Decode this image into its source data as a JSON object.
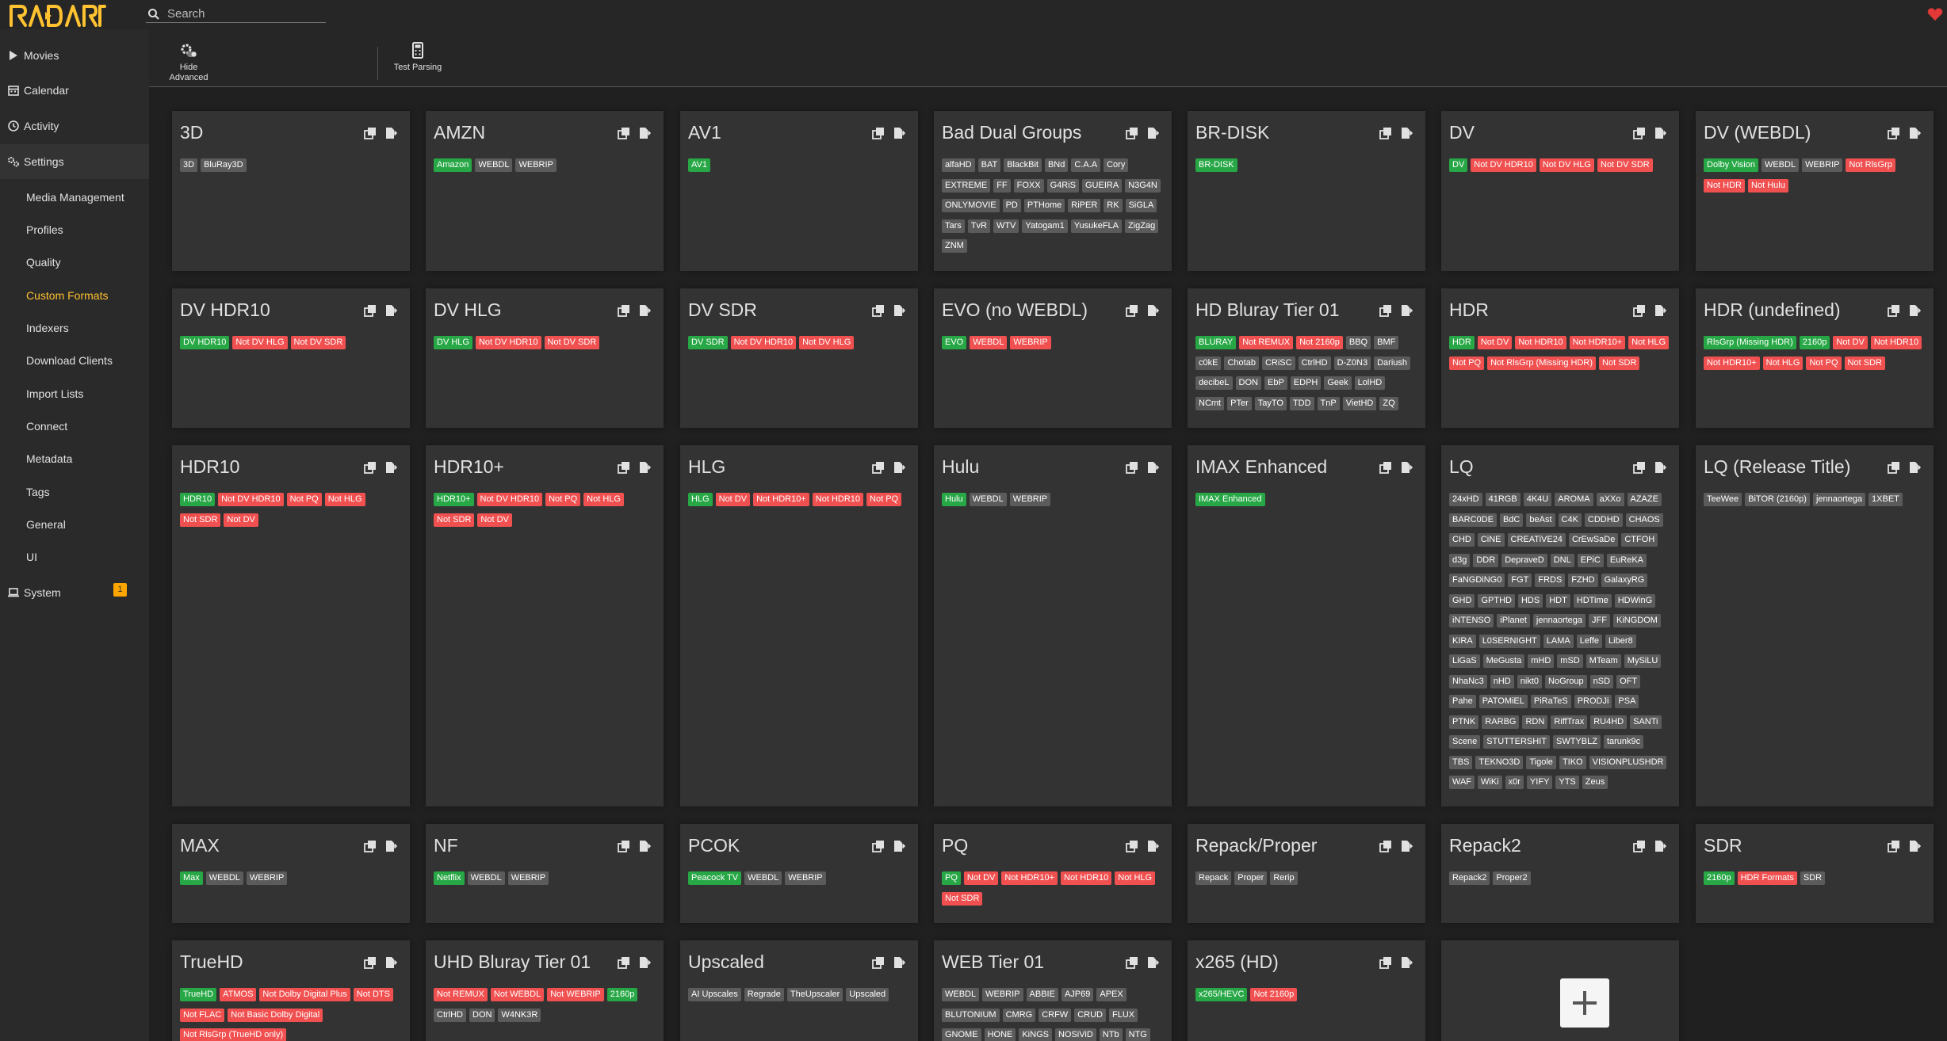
{
  "app": {
    "name": "RADARR"
  },
  "search": {
    "placeholder": "Search"
  },
  "sidebar": {
    "items": [
      {
        "id": "movies",
        "label": "Movies",
        "icon": "play-icon"
      },
      {
        "id": "calendar",
        "label": "Calendar",
        "icon": "calendar-icon"
      },
      {
        "id": "activity",
        "label": "Activity",
        "icon": "clock-icon"
      },
      {
        "id": "settings",
        "label": "Settings",
        "icon": "gears-icon"
      }
    ],
    "settings_sub": [
      "Media Management",
      "Profiles",
      "Quality",
      "Custom Formats",
      "Indexers",
      "Download Clients",
      "Import Lists",
      "Connect",
      "Metadata",
      "Tags",
      "General",
      "UI"
    ],
    "system": {
      "label": "System",
      "badge": "1"
    }
  },
  "toolbar": {
    "hide_advanced": "Hide Advanced",
    "test_parsing": "Test Parsing"
  },
  "colors": {
    "accent": "#ffc230",
    "ok": "#27a745",
    "bad": "#f05050",
    "neutral": "#5b5b5b",
    "card": "#333333"
  },
  "formats": [
    {
      "name": "3D",
      "tags": [
        [
          "3D",
          "neu"
        ],
        [
          "BluRay3D",
          "neu"
        ]
      ]
    },
    {
      "name": "AMZN",
      "tags": [
        [
          "Amazon",
          "ok"
        ],
        [
          "WEBDL",
          "neu"
        ],
        [
          "WEBRIP",
          "neu"
        ]
      ]
    },
    {
      "name": "AV1",
      "tags": [
        [
          "AV1",
          "ok"
        ]
      ]
    },
    {
      "name": "Bad Dual Groups",
      "tags": [
        [
          "alfaHD",
          "neu"
        ],
        [
          "BAT",
          "neu"
        ],
        [
          "BlackBit",
          "neu"
        ],
        [
          "BNd",
          "neu"
        ],
        [
          "C.A.A",
          "neu"
        ],
        [
          "Cory",
          "neu"
        ],
        [
          "EXTREME",
          "neu"
        ],
        [
          "FF",
          "neu"
        ],
        [
          "FOXX",
          "neu"
        ],
        [
          "G4RiS",
          "neu"
        ],
        [
          "GUEIRA",
          "neu"
        ],
        [
          "N3G4N",
          "neu"
        ],
        [
          "ONLYMOVIE",
          "neu"
        ],
        [
          "PD",
          "neu"
        ],
        [
          "PTHome",
          "neu"
        ],
        [
          "RiPER",
          "neu"
        ],
        [
          "RK",
          "neu"
        ],
        [
          "SiGLA",
          "neu"
        ],
        [
          "Tars",
          "neu"
        ],
        [
          "TvR",
          "neu"
        ],
        [
          "WTV",
          "neu"
        ],
        [
          "Yatogam1",
          "neu"
        ],
        [
          "YusukeFLA",
          "neu"
        ],
        [
          "ZigZag",
          "neu"
        ],
        [
          "ZNM",
          "neu"
        ]
      ]
    },
    {
      "name": "BR-DISK",
      "tags": [
        [
          "BR-DISK",
          "ok"
        ]
      ]
    },
    {
      "name": "DV",
      "tags": [
        [
          "DV",
          "ok"
        ],
        [
          "Not DV HDR10",
          "bad"
        ],
        [
          "Not DV HLG",
          "bad"
        ],
        [
          "Not DV SDR",
          "bad"
        ]
      ]
    },
    {
      "name": "DV (WEBDL)",
      "tags": [
        [
          "Dolby Vision",
          "ok"
        ],
        [
          "WEBDL",
          "neu"
        ],
        [
          "WEBRIP",
          "neu"
        ],
        [
          "Not RlsGrp",
          "bad"
        ],
        [
          "Not HDR",
          "bad"
        ],
        [
          "Not Hulu",
          "bad"
        ]
      ]
    },
    {
      "name": "DV HDR10",
      "tags": [
        [
          "DV HDR10",
          "ok"
        ],
        [
          "Not DV HLG",
          "bad"
        ],
        [
          "Not DV SDR",
          "bad"
        ]
      ]
    },
    {
      "name": "DV HLG",
      "tags": [
        [
          "DV HLG",
          "ok"
        ],
        [
          "Not DV HDR10",
          "bad"
        ],
        [
          "Not DV SDR",
          "bad"
        ]
      ]
    },
    {
      "name": "DV SDR",
      "tags": [
        [
          "DV SDR",
          "ok"
        ],
        [
          "Not DV HDR10",
          "bad"
        ],
        [
          "Not DV HLG",
          "bad"
        ]
      ]
    },
    {
      "name": "EVO (no WEBDL)",
      "tags": [
        [
          "EVO",
          "ok"
        ],
        [
          "WEBDL",
          "bad"
        ],
        [
          "WEBRIP",
          "bad"
        ]
      ]
    },
    {
      "name": "HD Bluray Tier 01",
      "tags": [
        [
          "BLURAY",
          "ok"
        ],
        [
          "Not REMUX",
          "bad"
        ],
        [
          "Not 2160p",
          "bad"
        ],
        [
          "BBQ",
          "neu"
        ],
        [
          "BMF",
          "neu"
        ],
        [
          "c0kE",
          "neu"
        ],
        [
          "Chotab",
          "neu"
        ],
        [
          "CRiSC",
          "neu"
        ],
        [
          "CtrlHD",
          "neu"
        ],
        [
          "D-Z0N3",
          "neu"
        ],
        [
          "Dariush",
          "neu"
        ],
        [
          "decibeL",
          "neu"
        ],
        [
          "DON",
          "neu"
        ],
        [
          "EbP",
          "neu"
        ],
        [
          "EDPH",
          "neu"
        ],
        [
          "Geek",
          "neu"
        ],
        [
          "LolHD",
          "neu"
        ],
        [
          "NCmt",
          "neu"
        ],
        [
          "PTer",
          "neu"
        ],
        [
          "TayTO",
          "neu"
        ],
        [
          "TDD",
          "neu"
        ],
        [
          "TnP",
          "neu"
        ],
        [
          "VietHD",
          "neu"
        ],
        [
          "ZQ",
          "neu"
        ]
      ]
    },
    {
      "name": "HDR",
      "tags": [
        [
          "HDR",
          "ok"
        ],
        [
          "Not DV",
          "bad"
        ],
        [
          "Not HDR10",
          "bad"
        ],
        [
          "Not HDR10+",
          "bad"
        ],
        [
          "Not HLG",
          "bad"
        ],
        [
          "Not PQ",
          "bad"
        ],
        [
          "Not RlsGrp (Missing HDR)",
          "bad"
        ],
        [
          "Not SDR",
          "bad"
        ]
      ]
    },
    {
      "name": "HDR (undefined)",
      "tags": [
        [
          "RlsGrp (Missing HDR)",
          "ok"
        ],
        [
          "2160p",
          "ok"
        ],
        [
          "Not DV",
          "bad"
        ],
        [
          "Not HDR10",
          "bad"
        ],
        [
          "Not HDR10+",
          "bad"
        ],
        [
          "Not HLG",
          "bad"
        ],
        [
          "Not PQ",
          "bad"
        ],
        [
          "Not SDR",
          "bad"
        ]
      ]
    },
    {
      "name": "HDR10",
      "tags": [
        [
          "HDR10",
          "ok"
        ],
        [
          "Not DV HDR10",
          "bad"
        ],
        [
          "Not PQ",
          "bad"
        ],
        [
          "Not HLG",
          "bad"
        ],
        [
          "Not SDR",
          "bad"
        ],
        [
          "Not DV",
          "bad"
        ]
      ]
    },
    {
      "name": "HDR10+",
      "tags": [
        [
          "HDR10+",
          "ok"
        ],
        [
          "Not DV HDR10",
          "bad"
        ],
        [
          "Not PQ",
          "bad"
        ],
        [
          "Not HLG",
          "bad"
        ],
        [
          "Not SDR",
          "bad"
        ],
        [
          "Not DV",
          "bad"
        ]
      ]
    },
    {
      "name": "HLG",
      "tags": [
        [
          "HLG",
          "ok"
        ],
        [
          "Not DV",
          "bad"
        ],
        [
          "Not HDR10+",
          "bad"
        ],
        [
          "Not HDR10",
          "bad"
        ],
        [
          "Not PQ",
          "bad"
        ]
      ]
    },
    {
      "name": "Hulu",
      "tags": [
        [
          "Hulu",
          "ok"
        ],
        [
          "WEBDL",
          "neu"
        ],
        [
          "WEBRIP",
          "neu"
        ]
      ]
    },
    {
      "name": "IMAX Enhanced",
      "tags": [
        [
          "IMAX Enhanced",
          "ok"
        ]
      ]
    },
    {
      "name": "LQ",
      "tags": [
        [
          "24xHD",
          "neu"
        ],
        [
          "41RGB",
          "neu"
        ],
        [
          "4K4U",
          "neu"
        ],
        [
          "AROMA",
          "neu"
        ],
        [
          "aXXo",
          "neu"
        ],
        [
          "AZAZE",
          "neu"
        ],
        [
          "BARC0DE",
          "neu"
        ],
        [
          "BdC",
          "neu"
        ],
        [
          "beAst",
          "neu"
        ],
        [
          "C4K",
          "neu"
        ],
        [
          "CDDHD",
          "neu"
        ],
        [
          "CHAOS",
          "neu"
        ],
        [
          "CHD",
          "neu"
        ],
        [
          "CiNE",
          "neu"
        ],
        [
          "CREATiVE24",
          "neu"
        ],
        [
          "CrEwSaDe",
          "neu"
        ],
        [
          "CTFOH",
          "neu"
        ],
        [
          "d3g",
          "neu"
        ],
        [
          "DDR",
          "neu"
        ],
        [
          "DepraveD",
          "neu"
        ],
        [
          "DNL",
          "neu"
        ],
        [
          "EPiC",
          "neu"
        ],
        [
          "EuReKA",
          "neu"
        ],
        [
          "FaNGDiNG0",
          "neu"
        ],
        [
          "FGT",
          "neu"
        ],
        [
          "FRDS",
          "neu"
        ],
        [
          "FZHD",
          "neu"
        ],
        [
          "GalaxyRG",
          "neu"
        ],
        [
          "GHD",
          "neu"
        ],
        [
          "GPTHD",
          "neu"
        ],
        [
          "HDS",
          "neu"
        ],
        [
          "HDT",
          "neu"
        ],
        [
          "HDTime",
          "neu"
        ],
        [
          "HDWinG",
          "neu"
        ],
        [
          "iNTENSO",
          "neu"
        ],
        [
          "iPlanet",
          "neu"
        ],
        [
          "jennaortega",
          "neu"
        ],
        [
          "JFF",
          "neu"
        ],
        [
          "KiNGDOM",
          "neu"
        ],
        [
          "KIRA",
          "neu"
        ],
        [
          "L0SERNIGHT",
          "neu"
        ],
        [
          "LAMA",
          "neu"
        ],
        [
          "Leffe",
          "neu"
        ],
        [
          "Liber8",
          "neu"
        ],
        [
          "LiGaS",
          "neu"
        ],
        [
          "MeGusta",
          "neu"
        ],
        [
          "mHD",
          "neu"
        ],
        [
          "mSD",
          "neu"
        ],
        [
          "MTeam",
          "neu"
        ],
        [
          "MySiLU",
          "neu"
        ],
        [
          "NhaNc3",
          "neu"
        ],
        [
          "nHD",
          "neu"
        ],
        [
          "nikt0",
          "neu"
        ],
        [
          "NoGroup",
          "neu"
        ],
        [
          "nSD",
          "neu"
        ],
        [
          "OFT",
          "neu"
        ],
        [
          "Pahe",
          "neu"
        ],
        [
          "PATOMiEL",
          "neu"
        ],
        [
          "PiRaTeS",
          "neu"
        ],
        [
          "PRODJi",
          "neu"
        ],
        [
          "PSA",
          "neu"
        ],
        [
          "PTNK",
          "neu"
        ],
        [
          "RARBG",
          "neu"
        ],
        [
          "RDN",
          "neu"
        ],
        [
          "RiffTrax",
          "neu"
        ],
        [
          "RU4HD",
          "neu"
        ],
        [
          "SANTi",
          "neu"
        ],
        [
          "Scene",
          "neu"
        ],
        [
          "STUTTERSHIT",
          "neu"
        ],
        [
          "SWTYBLZ",
          "neu"
        ],
        [
          "tarunk9c",
          "neu"
        ],
        [
          "TBS",
          "neu"
        ],
        [
          "TEKNO3D",
          "neu"
        ],
        [
          "Tigole",
          "neu"
        ],
        [
          "TIKO",
          "neu"
        ],
        [
          "VISIONPLUSHDR",
          "neu"
        ],
        [
          "WAF",
          "neu"
        ],
        [
          "WiKi",
          "neu"
        ],
        [
          "x0r",
          "neu"
        ],
        [
          "YIFY",
          "neu"
        ],
        [
          "YTS",
          "neu"
        ],
        [
          "Zeus",
          "neu"
        ]
      ]
    },
    {
      "name": "LQ (Release Title)",
      "tags": [
        [
          "TeeWee",
          "neu"
        ],
        [
          "BiTOR (2160p)",
          "neu"
        ],
        [
          "jennaortega",
          "neu"
        ],
        [
          "1XBET",
          "neu"
        ]
      ]
    },
    {
      "name": "MAX",
      "tags": [
        [
          "Max",
          "ok"
        ],
        [
          "WEBDL",
          "neu"
        ],
        [
          "WEBRIP",
          "neu"
        ]
      ]
    },
    {
      "name": "NF",
      "tags": [
        [
          "Netflix",
          "ok"
        ],
        [
          "WEBDL",
          "neu"
        ],
        [
          "WEBRIP",
          "neu"
        ]
      ]
    },
    {
      "name": "PCOK",
      "tags": [
        [
          "Peacock TV",
          "ok"
        ],
        [
          "WEBDL",
          "neu"
        ],
        [
          "WEBRIP",
          "neu"
        ]
      ]
    },
    {
      "name": "PQ",
      "tags": [
        [
          "PQ",
          "ok"
        ],
        [
          "Not DV",
          "bad"
        ],
        [
          "Not HDR10+",
          "bad"
        ],
        [
          "Not HDR10",
          "bad"
        ],
        [
          "Not HLG",
          "bad"
        ],
        [
          "Not SDR",
          "bad"
        ]
      ]
    },
    {
      "name": "Repack/Proper",
      "tags": [
        [
          "Repack",
          "neu"
        ],
        [
          "Proper",
          "neu"
        ],
        [
          "Rerip",
          "neu"
        ]
      ]
    },
    {
      "name": "Repack2",
      "tags": [
        [
          "Repack2",
          "neu"
        ],
        [
          "Proper2",
          "neu"
        ]
      ]
    },
    {
      "name": "SDR",
      "tags": [
        [
          "2160p",
          "ok"
        ],
        [
          "HDR Formats",
          "bad"
        ],
        [
          "SDR",
          "neu"
        ]
      ]
    },
    {
      "name": "TrueHD",
      "tags": [
        [
          "TrueHD",
          "ok"
        ],
        [
          "ATMOS",
          "bad"
        ],
        [
          "Not Dolby Digital Plus",
          "bad"
        ],
        [
          "Not DTS",
          "bad"
        ],
        [
          "Not FLAC",
          "bad"
        ],
        [
          "Not Basic Dolby Digital",
          "bad"
        ],
        [
          "Not RlsGrp (TrueHD only)",
          "bad"
        ]
      ]
    },
    {
      "name": "UHD Bluray Tier 01",
      "tags": [
        [
          "Not REMUX",
          "bad"
        ],
        [
          "Not WEBDL",
          "bad"
        ],
        [
          "Not WEBRIP",
          "bad"
        ],
        [
          "2160p",
          "ok"
        ],
        [
          "CtrlHD",
          "neu"
        ],
        [
          "DON",
          "neu"
        ],
        [
          "W4NK3R",
          "neu"
        ]
      ]
    },
    {
      "name": "Upscaled",
      "tags": [
        [
          "AI Upscales",
          "neu"
        ],
        [
          "Regrade",
          "neu"
        ],
        [
          "TheUpscaler",
          "neu"
        ],
        [
          "Upscaled",
          "neu"
        ]
      ]
    },
    {
      "name": "WEB Tier 01",
      "tags": [
        [
          "WEBDL",
          "neu"
        ],
        [
          "WEBRIP",
          "neu"
        ],
        [
          "ABBIE",
          "neu"
        ],
        [
          "AJP69",
          "neu"
        ],
        [
          "APEX",
          "neu"
        ],
        [
          "BLUTONIUM",
          "neu"
        ],
        [
          "CMRG",
          "neu"
        ],
        [
          "CRFW",
          "neu"
        ],
        [
          "CRUD",
          "neu"
        ],
        [
          "FLUX",
          "neu"
        ],
        [
          "GNOME",
          "neu"
        ],
        [
          "HONE",
          "neu"
        ],
        [
          "KiNGS",
          "neu"
        ],
        [
          "NOSiViD",
          "neu"
        ],
        [
          "NTb",
          "neu"
        ],
        [
          "NTG",
          "neu"
        ]
      ]
    },
    {
      "name": "x265 (HD)",
      "tags": [
        [
          "x265/HEVC",
          "ok"
        ],
        [
          "Not 2160p",
          "bad"
        ]
      ]
    }
  ]
}
